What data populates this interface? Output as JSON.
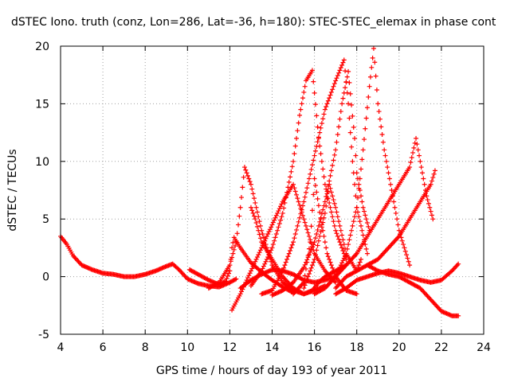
{
  "chart_data": {
    "type": "scatter",
    "title": "dSTEC Iono. truth (conz, Lon=286, Lat=-36, h=180): STEC-STEC_elemax in phase cont",
    "xlabel": "GPS time / hours of day 193 of year 2011",
    "ylabel": "dSTEC  / TECUs",
    "xlim": [
      4,
      24
    ],
    "ylim": [
      -5,
      20
    ],
    "xticks": [
      4,
      6,
      8,
      10,
      12,
      14,
      16,
      18,
      20,
      22,
      24
    ],
    "yticks": [
      -5,
      0,
      5,
      10,
      15,
      20
    ],
    "grid": true,
    "marker": "+",
    "color": "#ff0000",
    "series": [
      {
        "x": [
          4.0,
          4.3,
          4.6,
          5.0,
          5.5,
          6.0,
          6.5,
          7.0,
          7.5,
          8.0,
          8.5,
          9.0,
          9.3,
          9.6,
          10.0,
          10.5,
          11.0,
          11.5,
          12.0,
          12.3
        ],
        "y": [
          3.5,
          2.8,
          1.8,
          1.0,
          0.6,
          0.3,
          0.2,
          0.0,
          0.0,
          0.2,
          0.5,
          0.9,
          1.1,
          0.6,
          -0.2,
          -0.6,
          -0.8,
          -0.9,
          -0.5,
          -0.2
        ]
      },
      {
        "x": [
          10.1,
          10.5,
          11.0,
          11.5,
          11.8,
          12.0,
          12.1,
          12.2,
          12.5,
          13.0,
          13.5,
          14.0,
          14.5,
          15.0
        ],
        "y": [
          0.6,
          0.2,
          -0.3,
          -0.7,
          -0.4,
          0.5,
          2.5,
          3.4,
          2.5,
          1.2,
          0.4,
          -0.3,
          -0.9,
          -1.4
        ]
      },
      {
        "x": [
          11.0,
          11.5,
          12.0,
          12.3,
          12.5,
          12.7,
          13.0,
          13.5,
          14.0,
          14.5,
          15.0,
          15.5,
          16.0,
          16.5
        ],
        "y": [
          -1.0,
          -0.5,
          1.0,
          3.0,
          6.0,
          9.5,
          8.0,
          4.0,
          1.0,
          -0.5,
          -1.2,
          -1.5,
          -1.2,
          -0.8
        ]
      },
      {
        "x": [
          12.1,
          12.5,
          13.0,
          13.5,
          14.0,
          14.5,
          15.0,
          15.5,
          16.0,
          16.5,
          17.0
        ],
        "y": [
          -2.9,
          -1.5,
          0.5,
          2.5,
          4.5,
          6.5,
          8.0,
          5.0,
          2.0,
          0.5,
          -0.5
        ]
      },
      {
        "x": [
          12.5,
          13.0,
          13.5,
          14.0,
          14.5,
          15.0,
          15.5,
          16.0,
          16.5,
          17.0
        ],
        "y": [
          -1.0,
          -0.3,
          0.2,
          0.6,
          0.5,
          0.2,
          -0.3,
          -0.5,
          -0.3,
          0.0
        ]
      },
      {
        "x": [
          13.0,
          13.2,
          13.5,
          14.0,
          14.5,
          15.0,
          15.5,
          15.9,
          16.2,
          16.5,
          17.0,
          17.5
        ],
        "y": [
          6.0,
          5.0,
          3.0,
          1.5,
          0.0,
          -1.0,
          -1.5,
          -1.2,
          -0.5,
          0.0,
          0.5,
          1.0
        ]
      },
      {
        "x": [
          13.0,
          13.5,
          14.0,
          14.5,
          15.0,
          15.3,
          15.6,
          15.9,
          16.2,
          16.5,
          17.0,
          17.5
        ],
        "y": [
          -0.8,
          0.5,
          2.5,
          5.5,
          10.0,
          14.0,
          17.0,
          17.9,
          12.0,
          8.0,
          4.0,
          1.5
        ]
      },
      {
        "x": [
          13.5,
          14.0,
          14.5,
          15.0,
          15.5,
          16.0,
          16.5,
          17.0,
          17.4,
          17.6,
          17.8,
          18.0,
          18.5
        ],
        "y": [
          -1.5,
          -1.2,
          0.5,
          3.0,
          6.5,
          10.5,
          14.5,
          17.0,
          18.8,
          15.0,
          10.0,
          6.0,
          2.0
        ]
      },
      {
        "x": [
          14.0,
          14.5,
          15.0,
          15.5,
          16.0,
          16.5,
          17.0,
          17.3,
          17.6,
          17.9,
          18.0,
          18.3,
          18.6
        ],
        "y": [
          -1.6,
          -1.2,
          -0.5,
          0.8,
          3.0,
          6.5,
          11.0,
          15.0,
          17.8,
          12.0,
          9.0,
          6.0,
          4.0
        ]
      },
      {
        "x": [
          15.0,
          15.5,
          15.8,
          16.0,
          16.3,
          16.6,
          17.0,
          17.5,
          18.0
        ],
        "y": [
          -1.5,
          -0.5,
          3.0,
          8.5,
          5.0,
          2.0,
          0.0,
          -1.2,
          -1.5
        ]
      },
      {
        "x": [
          15.5,
          16.0,
          16.5,
          16.7,
          17.0,
          17.5,
          18.0,
          18.2
        ],
        "y": [
          -1.0,
          1.5,
          5.5,
          8.0,
          6.0,
          2.0,
          0.5,
          1.5
        ]
      },
      {
        "x": [
          16.0,
          16.5,
          17.0,
          17.5,
          18.0,
          18.3,
          18.6,
          18.8,
          19.0,
          19.3,
          19.6,
          20.0,
          20.5
        ],
        "y": [
          -1.5,
          -1.0,
          0.0,
          2.0,
          6.0,
          11.0,
          16.5,
          19.8,
          15.0,
          11.0,
          8.0,
          4.0,
          1.0
        ]
      },
      {
        "x": [
          17.0,
          17.5,
          18.0,
          18.5,
          19.0,
          19.5,
          20.0,
          20.5,
          21.0,
          21.5,
          22.0,
          22.5,
          22.8
        ],
        "y": [
          -1.5,
          -1.0,
          -0.3,
          0.0,
          0.3,
          0.5,
          0.3,
          0.0,
          -0.3,
          -0.5,
          -0.3,
          0.5,
          1.1
        ]
      },
      {
        "x": [
          16.5,
          17.0,
          17.5,
          18.0,
          18.5,
          19.0,
          19.5,
          20.0,
          20.5,
          20.8,
          21.0,
          21.3,
          21.6
        ],
        "y": [
          -1.0,
          0.0,
          1.0,
          2.0,
          3.5,
          5.0,
          6.5,
          8.0,
          9.5,
          12.0,
          10.0,
          7.0,
          5.0
        ]
      },
      {
        "x": [
          17.0,
          17.5,
          18.0,
          18.5,
          19.0,
          19.5,
          20.0,
          20.5,
          21.0,
          21.5,
          21.7
        ],
        "y": [
          -1.0,
          0.0,
          0.5,
          1.0,
          1.5,
          2.5,
          3.5,
          5.0,
          6.5,
          8.0,
          9.2
        ]
      },
      {
        "x": [
          18.5,
          19.0,
          19.5,
          20.0,
          20.5,
          21.0,
          21.5,
          22.0,
          22.5,
          22.8
        ],
        "y": [
          1.0,
          0.5,
          0.2,
          0.0,
          -0.5,
          -1.0,
          -2.0,
          -3.0,
          -3.4,
          -3.4
        ]
      }
    ]
  }
}
